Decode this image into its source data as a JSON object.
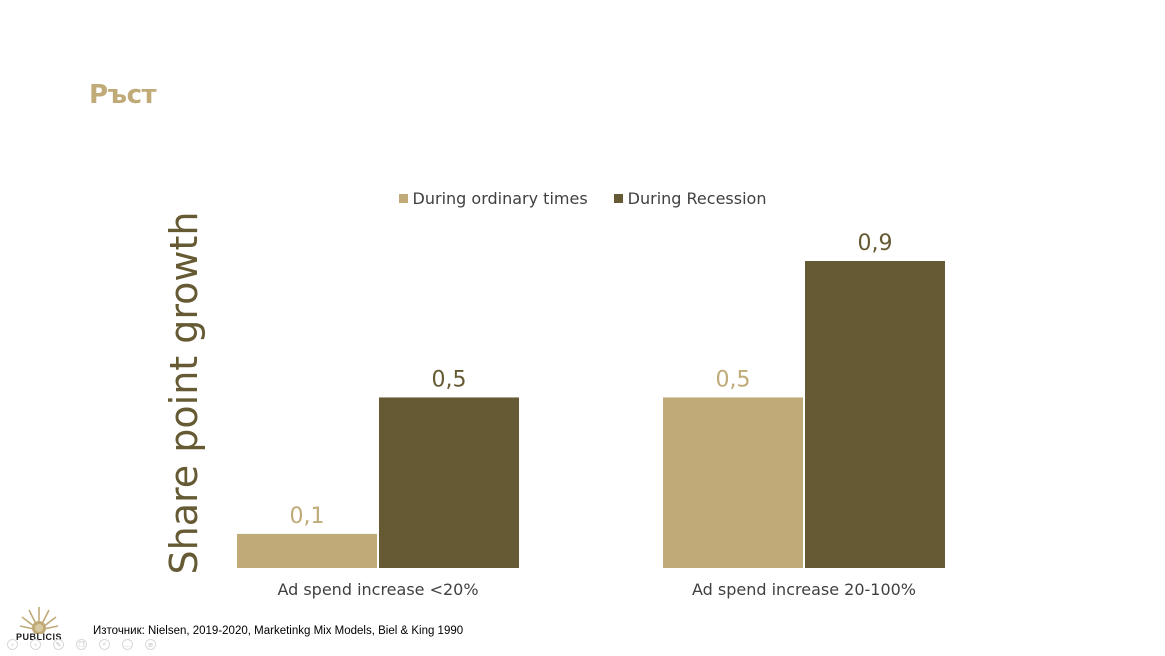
{
  "slide": {
    "title": "Ръст",
    "source": "Източник: Nielsen, 2019-2020, Marketinkg Mix Models, Biel & King 1990",
    "logo_text": "PUBLICIS"
  },
  "colors": {
    "title": "#BFAA78",
    "ordinary": "#BFAA78",
    "recession": "#665A34",
    "axis_label": "#665A34"
  },
  "icons": [
    "sun-emblem-icon",
    "back-icon",
    "forward-icon",
    "pen-icon",
    "copy-icon",
    "zoom-icon",
    "more-icon",
    "menu-icon"
  ],
  "controls": [
    {
      "name": "slide-back-control",
      "glyph": "‹"
    },
    {
      "name": "slide-forward-control",
      "glyph": "›"
    },
    {
      "name": "pen-control",
      "glyph": "✎"
    },
    {
      "name": "copy-control",
      "glyph": "❐"
    },
    {
      "name": "zoom-control",
      "glyph": "⌕"
    },
    {
      "name": "more-control",
      "glyph": "…"
    },
    {
      "name": "menu-control",
      "glyph": "≡"
    }
  ],
  "chart_data": {
    "type": "bar",
    "title": "",
    "xlabel": "",
    "ylabel": "Share point growth",
    "categories": [
      "Ad spend increase <20%",
      "Ad spend increase 20-100%"
    ],
    "series": [
      {
        "name": "During ordinary times",
        "values": [
          0.1,
          0.5
        ],
        "labels": [
          "0,1",
          "0,5"
        ]
      },
      {
        "name": "During Recession",
        "values": [
          0.5,
          0.9
        ],
        "labels": [
          "0,5",
          "0,9"
        ]
      }
    ],
    "ylim": [
      0,
      0.9
    ],
    "grid": false,
    "legend": "top-center"
  }
}
